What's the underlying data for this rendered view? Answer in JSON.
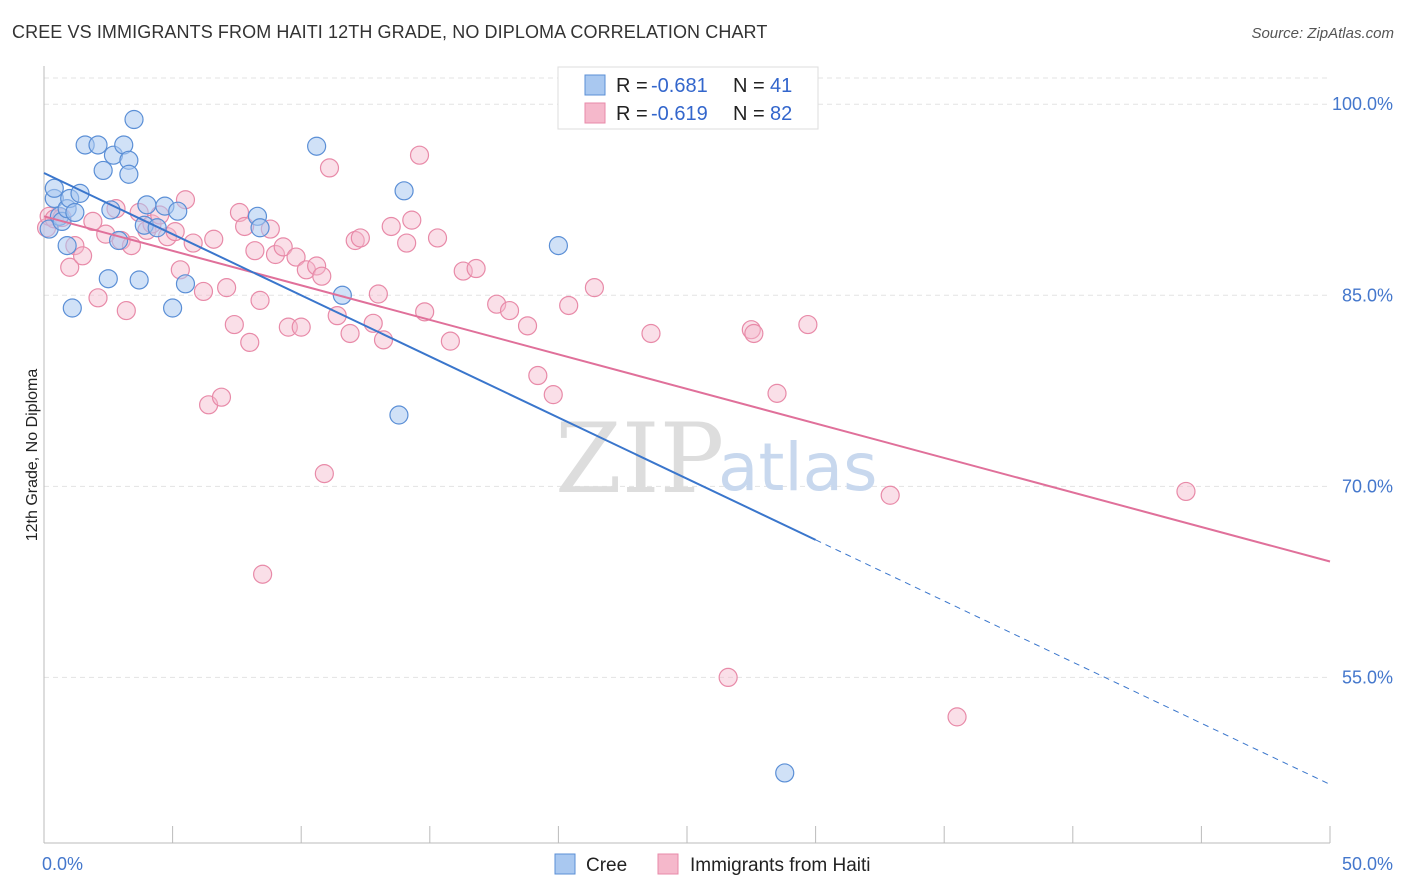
{
  "title": "CREE VS IMMIGRANTS FROM HAITI 12TH GRADE, NO DIPLOMA CORRELATION CHART",
  "source": "Source: ZipAtlas.com",
  "watermark": {
    "zip": "ZIP",
    "atlas": "atlas"
  },
  "colors": {
    "cree_fill": "#a9c8f0",
    "cree_stroke": "#5b8fd6",
    "cree_line": "#3a76cc",
    "haiti_fill": "#f5b8cb",
    "haiti_stroke": "#e88aa8",
    "haiti_line": "#e0709a",
    "grid": "#e3e3e3",
    "axis_tick_text": "#4477cc"
  },
  "legend": {
    "rows": [
      {
        "r_label": "R = ",
        "r_value": "-0.681",
        "n_label": "N = ",
        "n_value": "41"
      },
      {
        "r_label": "R = ",
        "r_value": "-0.619",
        "n_label": "N = ",
        "n_value": "82"
      }
    ]
  },
  "bottom_legend": {
    "cree": "Cree",
    "haiti": "Immigrants from Haiti"
  },
  "chart_data": {
    "type": "scatter",
    "ylabel": "12th Grade, No Diploma",
    "xlim": [
      0,
      50
    ],
    "ylim": [
      42,
      103
    ],
    "x_tick_labels": [
      {
        "value": 0,
        "label": "0.0%"
      },
      {
        "value": 50,
        "label": "50.0%"
      }
    ],
    "y_tick_labels": [
      {
        "value": 100,
        "label": "100.0%"
      },
      {
        "value": 85,
        "label": "85.0%"
      },
      {
        "value": 70,
        "label": "70.0%"
      },
      {
        "value": 55,
        "label": "55.0%"
      }
    ],
    "x_minor_ticks": [
      0,
      5,
      10,
      15,
      20,
      25,
      30,
      35,
      40,
      45,
      50
    ],
    "grid": true,
    "series": [
      {
        "name": "Cree",
        "trend": {
          "x0": 0,
          "y0": 94.6,
          "x1": 30,
          "y1": 65.8,
          "dashed_to_x": 50,
          "dashed_to_y": 46.6
        },
        "points": [
          [
            0.2,
            90.2
          ],
          [
            0.4,
            92.6
          ],
          [
            0.4,
            93.4
          ],
          [
            0.6,
            91.2
          ],
          [
            0.7,
            90.8
          ],
          [
            0.9,
            88.9
          ],
          [
            0.9,
            91.8
          ],
          [
            1.0,
            92.6
          ],
          [
            1.1,
            84.0
          ],
          [
            1.2,
            91.5
          ],
          [
            1.4,
            93.0
          ],
          [
            1.6,
            96.8
          ],
          [
            2.1,
            96.8
          ],
          [
            2.3,
            94.8
          ],
          [
            2.5,
            86.3
          ],
          [
            2.6,
            91.7
          ],
          [
            2.7,
            96.0
          ],
          [
            2.9,
            89.3
          ],
          [
            3.1,
            96.8
          ],
          [
            3.3,
            95.6
          ],
          [
            3.3,
            94.5
          ],
          [
            3.5,
            98.8
          ],
          [
            3.7,
            86.2
          ],
          [
            3.9,
            90.5
          ],
          [
            4.0,
            92.1
          ],
          [
            4.4,
            90.3
          ],
          [
            4.7,
            92.0
          ],
          [
            5.0,
            84.0
          ],
          [
            5.2,
            91.6
          ],
          [
            5.5,
            85.9
          ],
          [
            8.3,
            91.2
          ],
          [
            8.4,
            90.3
          ],
          [
            10.6,
            96.7
          ],
          [
            11.6,
            85.0
          ],
          [
            13.8,
            75.6
          ],
          [
            14.0,
            93.2
          ],
          [
            20.0,
            88.9
          ],
          [
            28.8,
            47.5
          ]
        ]
      },
      {
        "name": "Immigrants from Haiti",
        "trend": {
          "x0": 0,
          "y0": 91.2,
          "x1": 50,
          "y1": 64.1
        },
        "points": [
          [
            0.1,
            90.3
          ],
          [
            0.2,
            91.2
          ],
          [
            0.4,
            91.0
          ],
          [
            0.7,
            91.1
          ],
          [
            1.0,
            87.2
          ],
          [
            1.2,
            88.9
          ],
          [
            1.5,
            88.1
          ],
          [
            1.9,
            90.8
          ],
          [
            2.1,
            84.8
          ],
          [
            2.4,
            89.8
          ],
          [
            2.8,
            91.8
          ],
          [
            3.0,
            89.3
          ],
          [
            3.2,
            83.8
          ],
          [
            3.4,
            88.9
          ],
          [
            3.7,
            91.5
          ],
          [
            4.0,
            90.1
          ],
          [
            4.2,
            90.6
          ],
          [
            4.5,
            91.3
          ],
          [
            4.8,
            89.6
          ],
          [
            5.1,
            90.0
          ],
          [
            5.3,
            87.0
          ],
          [
            5.5,
            92.5
          ],
          [
            5.8,
            89.1
          ],
          [
            6.2,
            85.3
          ],
          [
            6.4,
            76.4
          ],
          [
            6.6,
            89.4
          ],
          [
            6.9,
            77.0
          ],
          [
            7.1,
            85.6
          ],
          [
            7.4,
            82.7
          ],
          [
            7.6,
            91.5
          ],
          [
            7.8,
            90.4
          ],
          [
            8.0,
            81.3
          ],
          [
            8.2,
            88.5
          ],
          [
            8.4,
            84.6
          ],
          [
            8.8,
            90.2
          ],
          [
            9.0,
            88.2
          ],
          [
            9.3,
            88.8
          ],
          [
            9.5,
            82.5
          ],
          [
            9.8,
            88.0
          ],
          [
            10.0,
            82.5
          ],
          [
            10.2,
            87.0
          ],
          [
            10.6,
            87.3
          ],
          [
            10.8,
            86.5
          ],
          [
            10.9,
            71.0
          ],
          [
            11.1,
            95.0
          ],
          [
            11.4,
            83.4
          ],
          [
            11.9,
            82.0
          ],
          [
            12.1,
            89.3
          ],
          [
            12.3,
            89.5
          ],
          [
            12.8,
            82.8
          ],
          [
            13.0,
            85.1
          ],
          [
            13.2,
            81.5
          ],
          [
            13.5,
            90.4
          ],
          [
            14.1,
            89.1
          ],
          [
            14.3,
            90.9
          ],
          [
            14.6,
            96.0
          ],
          [
            14.8,
            83.7
          ],
          [
            15.3,
            89.5
          ],
          [
            15.8,
            81.4
          ],
          [
            16.3,
            86.9
          ],
          [
            16.8,
            87.1
          ],
          [
            17.6,
            84.3
          ],
          [
            18.1,
            83.8
          ],
          [
            18.8,
            82.6
          ],
          [
            19.2,
            78.7
          ],
          [
            19.8,
            77.2
          ],
          [
            20.4,
            84.2
          ],
          [
            21.4,
            85.6
          ],
          [
            23.6,
            82.0
          ],
          [
            26.6,
            55.0
          ],
          [
            27.5,
            82.3
          ],
          [
            27.6,
            82.0
          ],
          [
            28.5,
            77.3
          ],
          [
            29.7,
            82.7
          ],
          [
            32.9,
            69.3
          ],
          [
            35.5,
            51.9
          ],
          [
            44.4,
            69.6
          ],
          [
            8.5,
            63.1
          ]
        ]
      }
    ]
  }
}
